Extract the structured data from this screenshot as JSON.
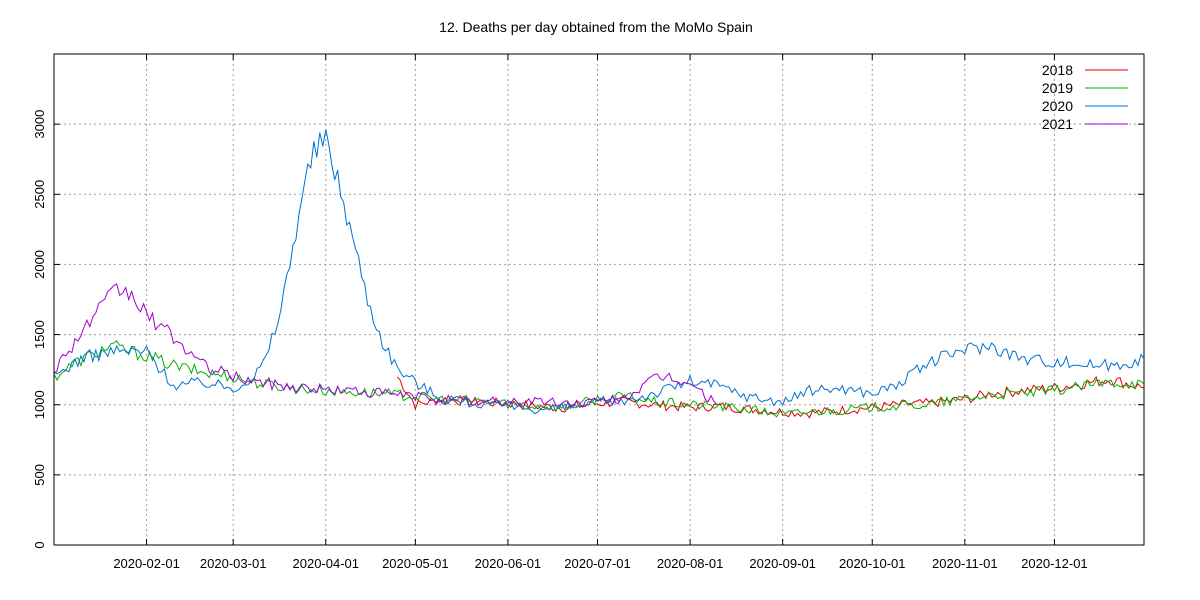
{
  "chart_data": {
    "type": "line",
    "title": "12. Deaths per day obtained from the MoMo Spain",
    "xlabel": "",
    "ylabel": "",
    "x_range": [
      "2020-01-01",
      "2020-12-31"
    ],
    "ylim": [
      0,
      3500
    ],
    "y_ticks": [
      0,
      500,
      1000,
      1500,
      2000,
      2500,
      3000
    ],
    "x_ticks": [
      "2020-02-01",
      "2020-03-01",
      "2020-04-01",
      "2020-05-01",
      "2020-06-01",
      "2020-07-01",
      "2020-08-01",
      "2020-09-01",
      "2020-10-01",
      "2020-11-01",
      "2020-12-01"
    ],
    "grid": true,
    "legend_position": "top-right",
    "series": [
      {
        "name": "2018",
        "color": "#e00000",
        "x": [
          "2020-04-25",
          "2020-05-01",
          "2020-05-10",
          "2020-05-20",
          "2020-06-01",
          "2020-06-10",
          "2020-06-20",
          "2020-07-01",
          "2020-07-10",
          "2020-07-20",
          "2020-08-01",
          "2020-08-10",
          "2020-08-20",
          "2020-09-01",
          "2020-09-10",
          "2020-09-20",
          "2020-10-01",
          "2020-10-10",
          "2020-10-20",
          "2020-11-01",
          "2020-11-10",
          "2020-11-20",
          "2020-12-01",
          "2020-12-10",
          "2020-12-20",
          "2020-12-31"
        ],
        "values": [
          1200,
          1000,
          1040,
          1020,
          1010,
          990,
          980,
          1010,
          1020,
          1000,
          980,
          990,
          970,
          950,
          940,
          960,
          980,
          1000,
          1010,
          1040,
          1080,
          1100,
          1120,
          1150,
          1180,
          1120
        ]
      },
      {
        "name": "2019",
        "color": "#00b000",
        "x": [
          "2020-01-01",
          "2020-01-10",
          "2020-01-20",
          "2020-02-01",
          "2020-02-10",
          "2020-02-20",
          "2020-03-01",
          "2020-03-10",
          "2020-03-20",
          "2020-04-01",
          "2020-04-10",
          "2020-04-20",
          "2020-05-01",
          "2020-05-10",
          "2020-05-20",
          "2020-06-01",
          "2020-06-10",
          "2020-06-20",
          "2020-07-01",
          "2020-07-10",
          "2020-07-20",
          "2020-08-01",
          "2020-08-10",
          "2020-08-20",
          "2020-09-01",
          "2020-09-10",
          "2020-09-20",
          "2020-10-01",
          "2020-10-10",
          "2020-10-20",
          "2020-11-01",
          "2020-11-10",
          "2020-11-20",
          "2020-12-01",
          "2020-12-10",
          "2020-12-20",
          "2020-12-31"
        ],
        "values": [
          1200,
          1320,
          1420,
          1350,
          1280,
          1230,
          1200,
          1150,
          1120,
          1100,
          1090,
          1080,
          1060,
          1040,
          1030,
          1010,
          990,
          980,
          1040,
          1060,
          1020,
          1000,
          990,
          970,
          930,
          950,
          960,
          980,
          990,
          1000,
          1040,
          1070,
          1080,
          1100,
          1130,
          1160,
          1150
        ]
      },
      {
        "name": "2020",
        "color": "#0070d0",
        "x": [
          "2020-01-01",
          "2020-01-10",
          "2020-01-20",
          "2020-02-01",
          "2020-02-10",
          "2020-02-20",
          "2020-03-01",
          "2020-03-08",
          "2020-03-12",
          "2020-03-16",
          "2020-03-20",
          "2020-03-24",
          "2020-03-28",
          "2020-04-01",
          "2020-04-05",
          "2020-04-10",
          "2020-04-15",
          "2020-04-20",
          "2020-04-25",
          "2020-05-01",
          "2020-05-10",
          "2020-05-20",
          "2020-06-01",
          "2020-06-10",
          "2020-06-20",
          "2020-07-01",
          "2020-07-10",
          "2020-07-20",
          "2020-08-01",
          "2020-08-10",
          "2020-08-20",
          "2020-09-01",
          "2020-09-10",
          "2020-09-20",
          "2020-10-01",
          "2020-10-10",
          "2020-10-20",
          "2020-11-01",
          "2020-11-10",
          "2020-11-20",
          "2020-12-01",
          "2020-12-10",
          "2020-12-20",
          "2020-12-31"
        ],
        "values": [
          1200,
          1330,
          1380,
          1380,
          1140,
          1160,
          1120,
          1200,
          1330,
          1600,
          2000,
          2500,
          2800,
          2900,
          2600,
          2200,
          1750,
          1450,
          1260,
          1160,
          1040,
          1010,
          990,
          970,
          980,
          1010,
          1030,
          1080,
          1170,
          1140,
          1060,
          1020,
          1100,
          1120,
          1080,
          1150,
          1300,
          1400,
          1420,
          1330,
          1310,
          1290,
          1280,
          1330
        ]
      },
      {
        "name": "2021",
        "color": "#a000d0",
        "x": [
          "2020-01-01",
          "2020-01-08",
          "2020-01-15",
          "2020-01-22",
          "2020-01-27",
          "2020-02-01",
          "2020-02-10",
          "2020-02-20",
          "2020-03-01",
          "2020-03-10",
          "2020-03-20",
          "2020-04-01",
          "2020-04-10",
          "2020-04-20",
          "2020-05-01",
          "2020-05-10",
          "2020-05-20",
          "2020-06-01",
          "2020-06-10",
          "2020-06-20",
          "2020-07-01",
          "2020-07-10",
          "2020-07-20",
          "2020-07-25",
          "2020-08-01",
          "2020-08-10"
        ],
        "values": [
          1250,
          1450,
          1650,
          1820,
          1780,
          1640,
          1480,
          1280,
          1200,
          1160,
          1130,
          1110,
          1100,
          1080,
          1060,
          1040,
          1020,
          1020,
          1030,
          1010,
          1020,
          1050,
          1180,
          1200,
          1150,
          1000
        ]
      }
    ]
  }
}
